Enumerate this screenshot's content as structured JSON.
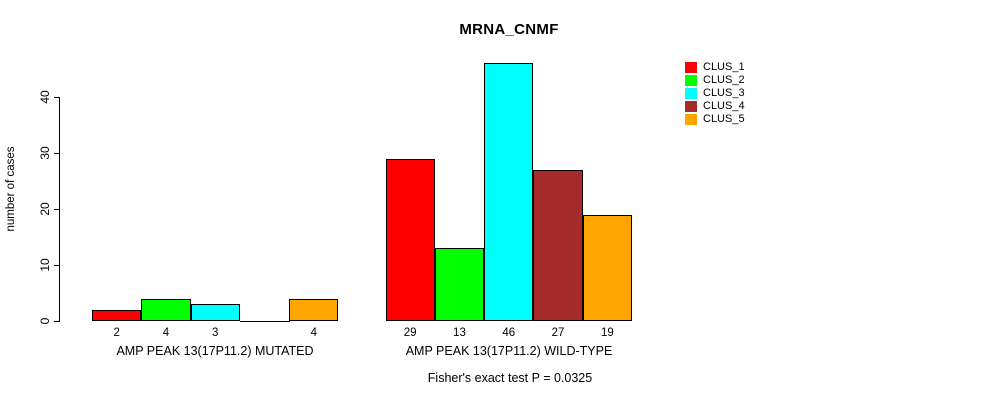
{
  "title": "MRNA_CNMF",
  "y_axis_label": "number of cases",
  "footer_note": "Fisher's exact test P = 0.0325",
  "legend": {
    "items": [
      {
        "label": "CLUS_1",
        "color": "#FF0000"
      },
      {
        "label": "CLUS_2",
        "color": "#00FF00"
      },
      {
        "label": "CLUS_3",
        "color": "#00FFFF"
      },
      {
        "label": "CLUS_4",
        "color": "#A52A2A"
      },
      {
        "label": "CLUS_5",
        "color": "#FFA500"
      }
    ]
  },
  "chart_data": {
    "type": "bar",
    "title": "MRNA_CNMF",
    "xlabel": "",
    "ylabel": "number of cases",
    "ylim": [
      0,
      46
    ],
    "yticks": [
      0,
      10,
      20,
      30,
      40
    ],
    "grid": false,
    "legend_position": "top-right",
    "categories": [
      "AMP PEAK 13(17P11.2) MUTATED",
      "AMP PEAK 13(17P11.2) WILD-TYPE"
    ],
    "series": [
      {
        "name": "CLUS_1",
        "color": "#FF0000",
        "values": [
          2,
          29
        ]
      },
      {
        "name": "CLUS_2",
        "color": "#00FF00",
        "values": [
          4,
          13
        ]
      },
      {
        "name": "CLUS_3",
        "color": "#00FFFF",
        "values": [
          3,
          46
        ]
      },
      {
        "name": "CLUS_4",
        "color": "#A52A2A",
        "values": [
          0,
          27
        ]
      },
      {
        "name": "CLUS_5",
        "color": "#FFA500",
        "values": [
          4,
          19
        ]
      }
    ],
    "bar_value_labels": [
      [
        "2",
        "4",
        "3",
        "",
        "4"
      ],
      [
        "29",
        "13",
        "46",
        "27",
        "19"
      ]
    ],
    "annotation": "Fisher's exact test P = 0.0325"
  }
}
